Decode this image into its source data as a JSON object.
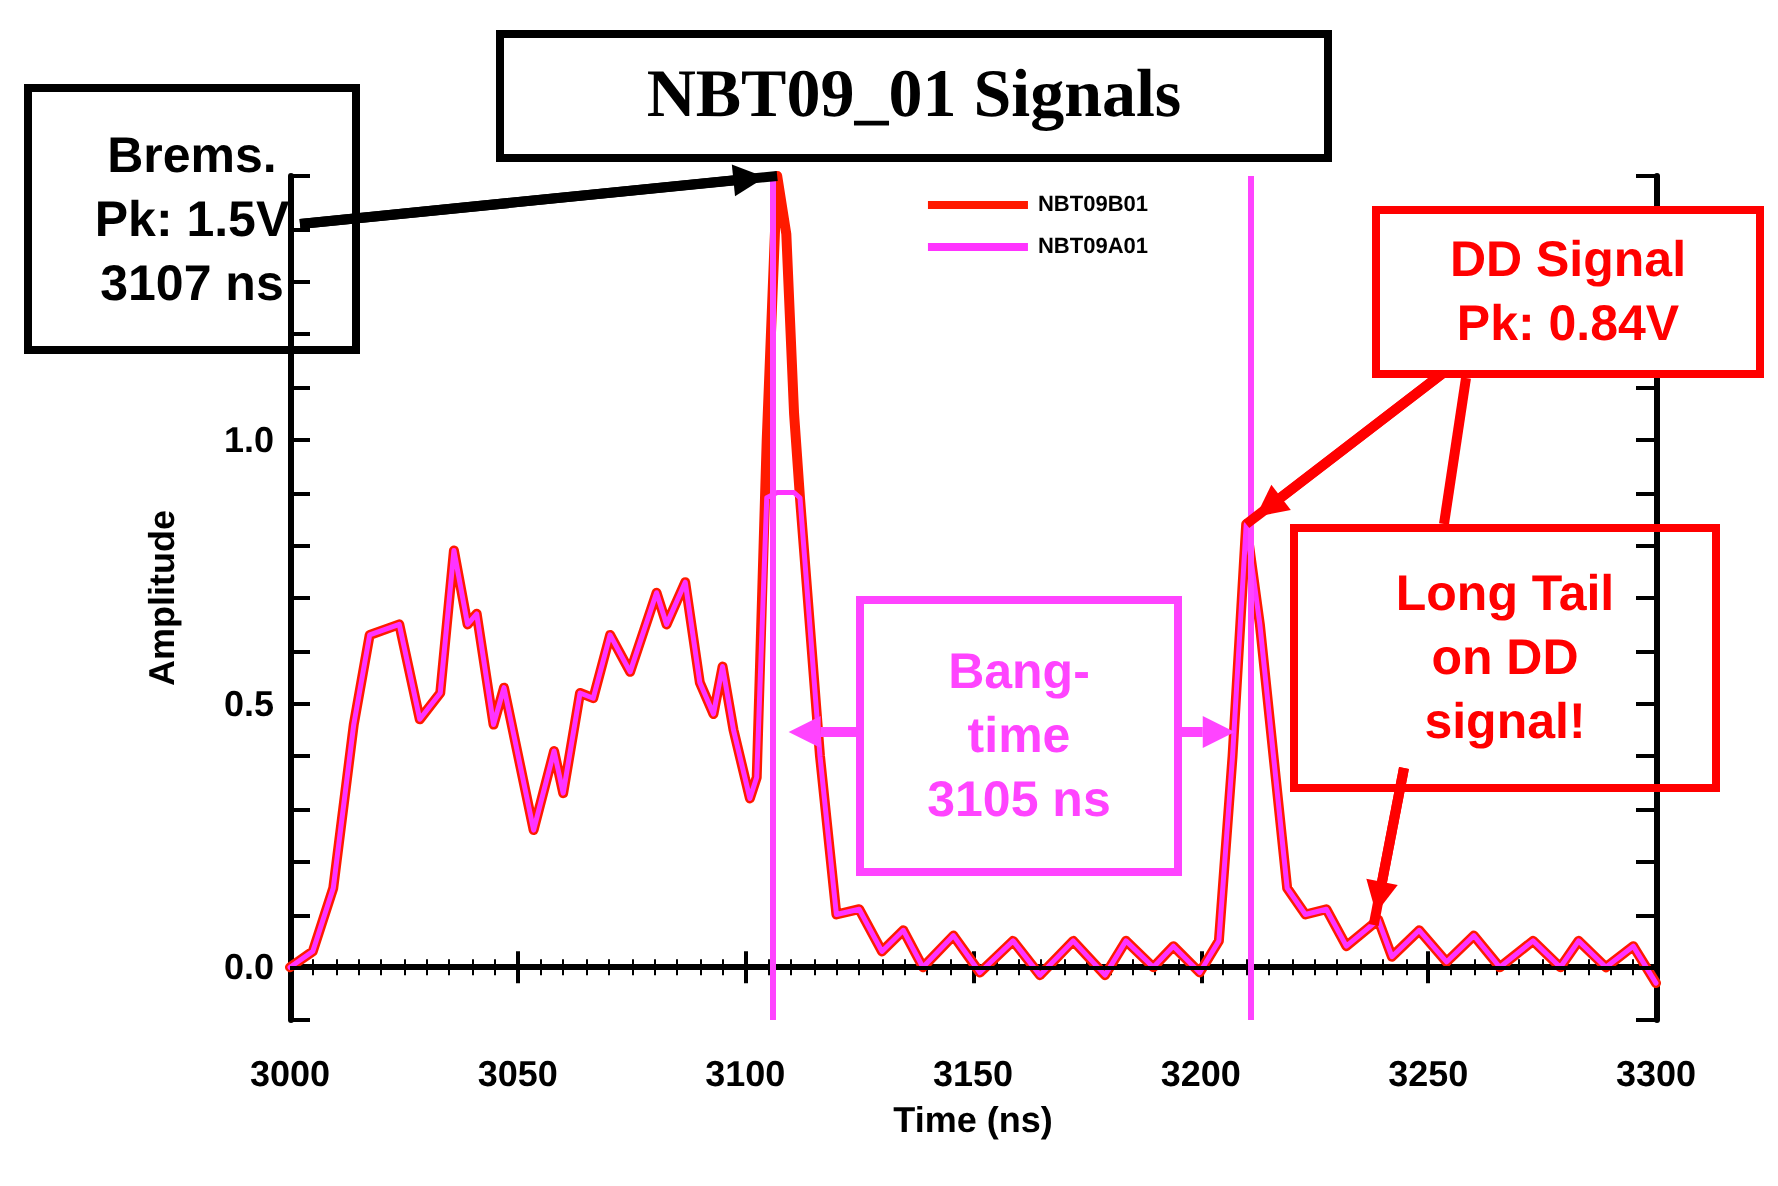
{
  "chart_data": {
    "type": "line",
    "title": "NBT09_01 Signals",
    "xlabel": "Time (ns)",
    "ylabel": "Amplitude",
    "x": [
      3000,
      3005,
      3009.5,
      3014,
      3017.5,
      3024,
      3028.5,
      3033,
      3036,
      3039,
      3041,
      3044.7,
      3047,
      3053.5,
      3058,
      3060,
      3063.7,
      3066.6,
      3070.3,
      3074.7,
      3080.5,
      3082.7,
      3086.8,
      3090,
      3093,
      3095,
      3097.4,
      3101,
      3102.5,
      3104.7,
      3107,
      3109,
      3110.7,
      3112,
      3116.4,
      3120,
      3125,
      3130,
      3134.7,
      3139,
      3145.7,
      3151.5,
      3158.8,
      3164.7,
      3172,
      3179,
      3183.6,
      3189.6,
      3194,
      3199.8,
      3204,
      3207,
      3210,
      3213,
      3219,
      3223,
      3227.6,
      3232,
      3239,
      3242,
      3248,
      3254,
      3260,
      3265.7,
      3273,
      3279,
      3283,
      3289,
      3295,
      3300
    ],
    "series": [
      {
        "name": "NBT09B01",
        "color": "#ff1a00",
        "values": [
          0,
          0.03,
          0.15,
          0.46,
          0.63,
          0.65,
          0.47,
          0.52,
          0.79,
          0.65,
          0.67,
          0.46,
          0.53,
          0.26,
          0.41,
          0.33,
          0.52,
          0.51,
          0.63,
          0.56,
          0.71,
          0.65,
          0.73,
          0.54,
          0.48,
          0.57,
          0.45,
          0.32,
          0.36,
          1.0,
          1.5,
          1.39,
          1.05,
          0.89,
          0.4,
          0.1,
          0.11,
          0.03,
          0.07,
          0,
          0.06,
          -0.01,
          0.05,
          -0.015,
          0.05,
          -0.015,
          0.05,
          0,
          0.04,
          -0.01,
          0.05,
          0.4,
          0.84,
          0.65,
          0.15,
          0.1,
          0.11,
          0.04,
          0.09,
          0.02,
          0.07,
          0.01,
          0.06,
          0,
          0.05,
          0,
          0.05,
          0,
          0.04,
          -0.03
        ]
      },
      {
        "name": "NBT09A01",
        "color": "#ff33ff",
        "values": [
          0,
          0.03,
          0.15,
          0.46,
          0.63,
          0.65,
          0.47,
          0.52,
          0.79,
          0.65,
          0.67,
          0.46,
          0.53,
          0.26,
          0.41,
          0.33,
          0.52,
          0.51,
          0.63,
          0.56,
          0.71,
          0.65,
          0.73,
          0.54,
          0.48,
          0.57,
          0.45,
          0.32,
          0.36,
          0.89,
          0.9,
          0.9,
          0.9,
          0.89,
          0.4,
          0.1,
          0.11,
          0.03,
          0.07,
          0,
          0.06,
          -0.01,
          0.05,
          -0.015,
          0.05,
          -0.015,
          0.05,
          0,
          0.04,
          -0.01,
          0.05,
          0.4,
          0.84,
          0.65,
          0.15,
          0.1,
          0.11,
          0.04,
          0.09,
          0.02,
          0.07,
          0.01,
          0.06,
          0,
          0.05,
          0,
          0.05,
          0,
          0.04,
          -0.03
        ]
      }
    ],
    "xlim": [
      3000,
      3300
    ],
    "xticks": [
      3000,
      3050,
      3100,
      3150,
      3200,
      3250,
      3300
    ],
    "ylim": [
      -0.1,
      1.5
    ],
    "yticks": [
      {
        "value": -0.1,
        "label": null
      },
      {
        "value": 0,
        "label": "0.0"
      },
      {
        "value": 0.1,
        "label": null
      },
      {
        "value": 0.2,
        "label": null
      },
      {
        "value": 0.3,
        "label": null
      },
      {
        "value": 0.4,
        "label": null
      },
      {
        "value": 0.5,
        "label": "0.5"
      },
      {
        "value": 0.6,
        "label": null
      },
      {
        "value": 0.7,
        "label": null
      },
      {
        "value": 0.8,
        "label": null
      },
      {
        "value": 0.9,
        "label": null
      },
      {
        "value": 1.0,
        "label": "1.0"
      },
      {
        "value": 1.1,
        "label": null
      },
      {
        "value": 1.2,
        "label": null
      },
      {
        "value": 1.3,
        "label": null
      },
      {
        "value": 1.4,
        "label": null
      },
      {
        "value": 1.5,
        "label": null
      }
    ],
    "ref_lines": [
      {
        "axis": "y",
        "value": 0,
        "color": "#000000"
      },
      {
        "axis": "x",
        "value": 3106,
        "color": "#ff44ff"
      },
      {
        "axis": "x",
        "value": 3211,
        "color": "#ff44ff"
      }
    ],
    "annotations": [
      {
        "text": "Brems.\nPk: 1.5V\n3107 ns",
        "x": 3107,
        "y": 1.5
      },
      {
        "text": "DD Signal\nPk: 0.84V",
        "x": 3210,
        "y": 0.84
      },
      {
        "text": "Long Tail\non DD\nsignal!",
        "x": 3238,
        "y": 0.08
      },
      "Bang-\ntime\n3105 ns"
    ],
    "legend": "top right",
    "grid": false,
    "marker": "none",
    "line_style": "solid"
  }
}
